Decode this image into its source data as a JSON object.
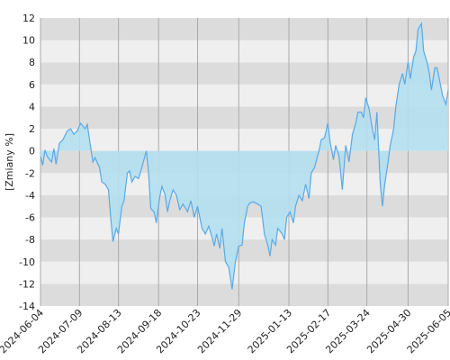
{
  "chart_data": {
    "type": "area",
    "y_label": "[Zmiany %]",
    "x": [
      "2024-06-04",
      "2024-06-06",
      "2024-06-08",
      "2024-06-10",
      "2024-06-14",
      "2024-06-16",
      "2024-06-18",
      "2024-06-21",
      "2024-06-24",
      "2024-06-28",
      "2024-07-01",
      "2024-07-04",
      "2024-07-07",
      "2024-07-10",
      "2024-07-14",
      "2024-07-16",
      "2024-07-18",
      "2024-07-21",
      "2024-07-23",
      "2024-07-27",
      "2024-07-29",
      "2024-08-01",
      "2024-08-04",
      "2024-08-06",
      "2024-08-08",
      "2024-08-11",
      "2024-08-13",
      "2024-08-16",
      "2024-08-18",
      "2024-08-21",
      "2024-08-23",
      "2024-08-25",
      "2024-08-28",
      "2024-08-31",
      "2024-09-03",
      "2024-09-07",
      "2024-09-09",
      "2024-09-11",
      "2024-09-14",
      "2024-09-16",
      "2024-09-19",
      "2024-09-21",
      "2024-09-24",
      "2024-09-26",
      "2024-09-28",
      "2024-10-01",
      "2024-10-04",
      "2024-10-07",
      "2024-10-10",
      "2024-10-14",
      "2024-10-17",
      "2024-10-20",
      "2024-10-23",
      "2024-10-27",
      "2024-10-30",
      "2024-11-02",
      "2024-11-05",
      "2024-11-07",
      "2024-11-09",
      "2024-11-12",
      "2024-11-14",
      "2024-11-17",
      "2024-11-20",
      "2024-11-23",
      "2024-11-26",
      "2024-11-29",
      "2024-12-02",
      "2024-12-04",
      "2024-12-07",
      "2024-12-09",
      "2024-12-12",
      "2024-12-16",
      "2024-12-19",
      "2024-12-22",
      "2024-12-25",
      "2024-12-27",
      "2024-12-29",
      "2025-01-01",
      "2025-01-03",
      "2025-01-07",
      "2025-01-09",
      "2025-01-11",
      "2025-01-14",
      "2025-01-17",
      "2025-01-19",
      "2025-01-22",
      "2025-01-25",
      "2025-01-28",
      "2025-01-31",
      "2025-02-02",
      "2025-02-05",
      "2025-02-09",
      "2025-02-11",
      "2025-02-14",
      "2025-02-17",
      "2025-02-19",
      "2025-02-22",
      "2025-02-24",
      "2025-02-27",
      "2025-03-02",
      "2025-03-05",
      "2025-03-08",
      "2025-03-11",
      "2025-03-14",
      "2025-03-16",
      "2025-03-19",
      "2025-03-21",
      "2025-03-23",
      "2025-03-26",
      "2025-03-28",
      "2025-03-31",
      "2025-04-02",
      "2025-04-05",
      "2025-04-07",
      "2025-04-09",
      "2025-04-12",
      "2025-04-14",
      "2025-04-17",
      "2025-04-19",
      "2025-04-22",
      "2025-04-25",
      "2025-04-27",
      "2025-04-30",
      "2025-05-02",
      "2025-05-05",
      "2025-05-07",
      "2025-05-09",
      "2025-05-12",
      "2025-05-14",
      "2025-05-17",
      "2025-05-19",
      "2025-05-21",
      "2025-05-24",
      "2025-05-26",
      "2025-05-29",
      "2025-05-31",
      "2025-06-03",
      "2025-06-05"
    ],
    "series": [
      {
        "color": "#5aa9e6",
        "fill": "#b4dff0",
        "values": [
          -0.5,
          -1.3,
          0.1,
          -0.5,
          -1.0,
          0.2,
          -1.2,
          0.7,
          1.0,
          1.8,
          2.0,
          1.5,
          1.8,
          2.5,
          2.0,
          2.4,
          1.0,
          -1.0,
          -0.6,
          -1.5,
          -2.8,
          -3.0,
          -3.5,
          -6.0,
          -8.2,
          -7.0,
          -7.5,
          -5.0,
          -4.5,
          -2.0,
          -1.8,
          -2.8,
          -2.3,
          -2.5,
          -1.5,
          0.0,
          -2.0,
          -5.2,
          -5.5,
          -6.5,
          -4.2,
          -3.2,
          -4.0,
          -5.5,
          -4.5,
          -3.5,
          -4.0,
          -5.3,
          -4.8,
          -5.5,
          -4.5,
          -6.0,
          -5.0,
          -7.0,
          -7.5,
          -6.8,
          -7.8,
          -8.6,
          -7.5,
          -8.8,
          -7.0,
          -10.0,
          -10.5,
          -12.5,
          -10.0,
          -8.6,
          -8.5,
          -6.5,
          -5.0,
          -4.7,
          -4.6,
          -4.8,
          -5.0,
          -7.5,
          -8.5,
          -9.5,
          -8.0,
          -8.5,
          -7.0,
          -7.5,
          -8.0,
          -6.0,
          -5.5,
          -6.5,
          -5.0,
          -4.0,
          -4.5,
          -3.0,
          -4.3,
          -2.0,
          -1.5,
          0.0,
          1.0,
          1.2,
          2.5,
          0.8,
          -0.8,
          0.5,
          -0.5,
          -3.5,
          0.5,
          -1.0,
          1.5,
          2.5,
          3.5,
          3.5,
          3.0,
          4.8,
          3.8,
          2.5,
          1.0,
          3.5,
          -3.0,
          -5.0,
          -3.0,
          -1.0,
          0.5,
          2.0,
          4.0,
          6.0,
          7.0,
          6.0,
          8.0,
          6.5,
          8.5,
          9.0,
          11.0,
          11.5,
          9.0,
          8.0,
          7.0,
          5.5,
          7.5,
          7.5,
          6.0,
          5.0,
          4.2,
          5.5
        ]
      }
    ],
    "xlim": [
      "2024-06-04",
      "2025-06-05"
    ],
    "xticks": [
      "2024-06-04",
      "2024-07-09",
      "2024-08-13",
      "2024-09-18",
      "2024-10-23",
      "2024-11-29",
      "2025-01-13",
      "2025-02-17",
      "2025-03-24",
      "2025-04-30",
      "2025-06-05"
    ],
    "ylim": [
      -14,
      12
    ],
    "yticks": [
      -14,
      -12,
      -10,
      -8,
      -6,
      -4,
      -2,
      0,
      2,
      4,
      6,
      8,
      10,
      12
    ],
    "grid": true,
    "bands": [
      "#dcdcdc",
      "#efefef"
    ]
  }
}
